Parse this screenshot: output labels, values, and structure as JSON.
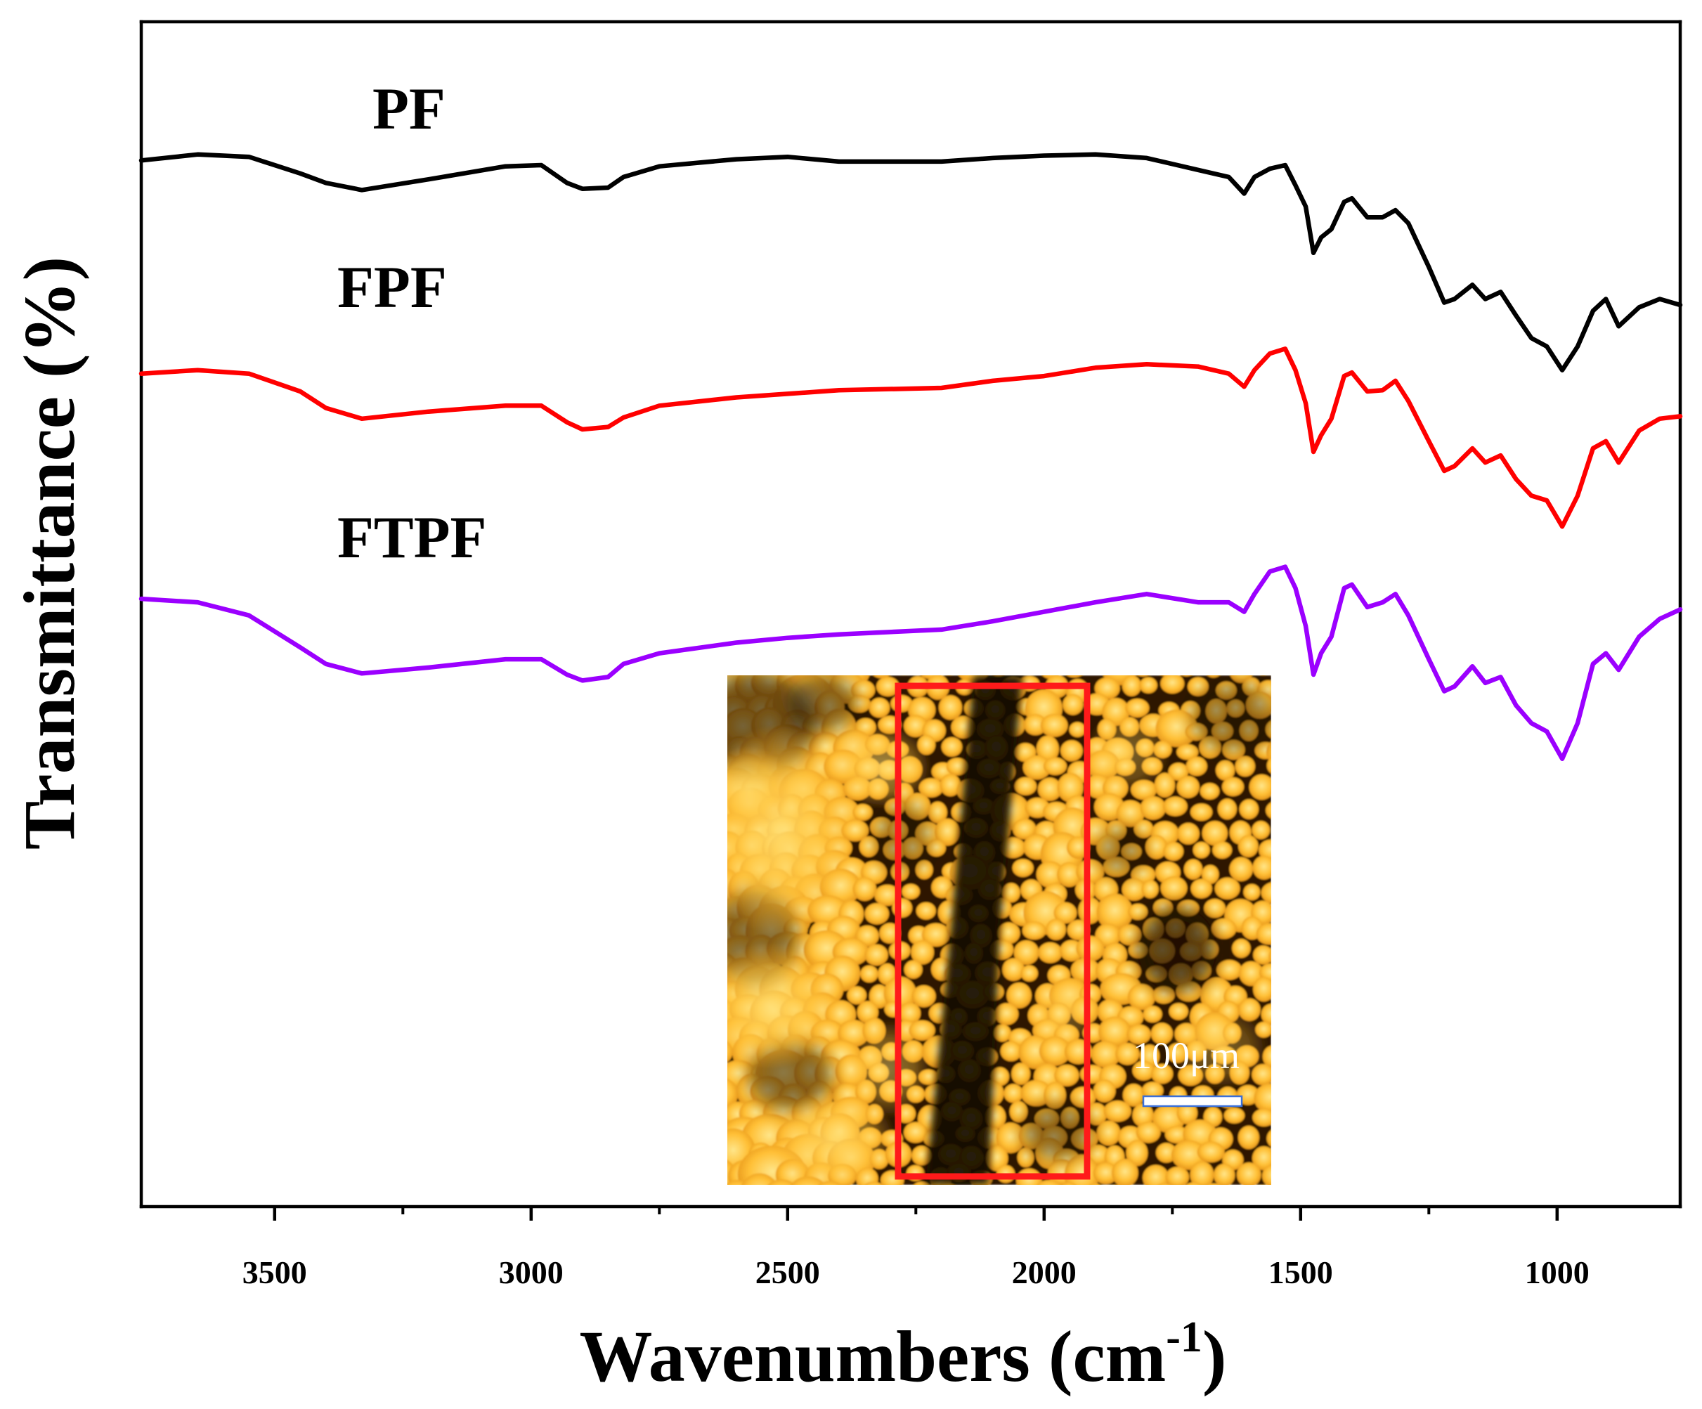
{
  "figure": {
    "inset": {
      "scale_bar_label": "100μm"
    }
  },
  "colors": {
    "inset_frame": "#ff1a1a",
    "scale_bar_fill": "#ffffff",
    "scale_bar_outline": "#3a6fd8",
    "axis": "#000000"
  },
  "chart_data": {
    "type": "line",
    "title": "",
    "xlabel": {
      "text": "Wavenumbers (cm",
      "superscript": "-1",
      "suffix": ")"
    },
    "ylabel": "Transmittance (%)",
    "xlim": [
      3760,
      760
    ],
    "ylim": [
      0,
      100
    ],
    "xticks": [
      3500,
      3000,
      2500,
      2000,
      1500,
      1000
    ],
    "xminor_ticks": [
      3250,
      2750,
      2250,
      1750,
      1250
    ],
    "grid": false,
    "x": [
      3760,
      3650,
      3550,
      3450,
      3400,
      3330,
      3200,
      3050,
      2980,
      2930,
      2900,
      2850,
      2820,
      2750,
      2600,
      2500,
      2400,
      2200,
      2100,
      2000,
      1900,
      1800,
      1700,
      1640,
      1610,
      1590,
      1560,
      1530,
      1510,
      1490,
      1475,
      1460,
      1440,
      1415,
      1400,
      1370,
      1340,
      1315,
      1290,
      1250,
      1220,
      1200,
      1165,
      1140,
      1110,
      1080,
      1050,
      1020,
      990,
      960,
      930,
      905,
      880,
      840,
      800,
      760
    ],
    "series": [
      {
        "name": "PF",
        "color": "#000000",
        "values": [
          88.3,
          88.8,
          88.6,
          87.2,
          86.4,
          85.8,
          86.7,
          87.8,
          87.9,
          86.4,
          85.9,
          86.0,
          86.9,
          87.8,
          88.4,
          88.6,
          88.2,
          88.2,
          88.5,
          88.7,
          88.8,
          88.5,
          87.5,
          86.9,
          85.5,
          86.9,
          87.6,
          87.9,
          86.2,
          84.4,
          80.5,
          81.8,
          82.5,
          84.8,
          85.1,
          83.5,
          83.5,
          84.1,
          83.0,
          79.3,
          76.3,
          76.6,
          77.8,
          76.6,
          77.2,
          75.2,
          73.3,
          72.6,
          70.6,
          72.6,
          75.6,
          76.6,
          74.3,
          75.9,
          76.6,
          76.1
        ]
      },
      {
        "name": "FPF",
        "color": "#ff0000",
        "values": [
          70.3,
          70.6,
          70.3,
          68.8,
          67.4,
          66.5,
          67.1,
          67.6,
          67.6,
          66.2,
          65.6,
          65.8,
          66.6,
          67.6,
          68.3,
          68.6,
          68.9,
          69.1,
          69.7,
          70.1,
          70.8,
          71.1,
          70.9,
          70.3,
          69.2,
          70.6,
          72.0,
          72.4,
          70.6,
          67.8,
          63.7,
          65.1,
          66.5,
          70.1,
          70.4,
          68.8,
          68.9,
          69.7,
          68.0,
          64.6,
          62.1,
          62.5,
          64.0,
          62.8,
          63.4,
          61.4,
          60.0,
          59.6,
          57.4,
          60.0,
          64.0,
          64.6,
          62.8,
          65.5,
          66.5,
          66.7
        ]
      },
      {
        "name": "FTPF",
        "color": "#9b00ff",
        "values": [
          51.3,
          51.0,
          49.9,
          47.2,
          45.8,
          45.0,
          45.5,
          46.2,
          46.2,
          44.9,
          44.4,
          44.7,
          45.8,
          46.7,
          47.6,
          48.0,
          48.3,
          48.7,
          49.4,
          50.2,
          51.0,
          51.7,
          51.0,
          51.0,
          50.2,
          51.7,
          53.6,
          54.0,
          52.2,
          49.0,
          44.9,
          46.7,
          48.1,
          52.2,
          52.5,
          50.6,
          51.0,
          51.7,
          49.9,
          46.2,
          43.5,
          43.9,
          45.6,
          44.2,
          44.7,
          42.3,
          40.8,
          40.1,
          37.8,
          40.8,
          45.8,
          46.7,
          45.3,
          48.1,
          49.6,
          50.4
        ]
      }
    ]
  }
}
